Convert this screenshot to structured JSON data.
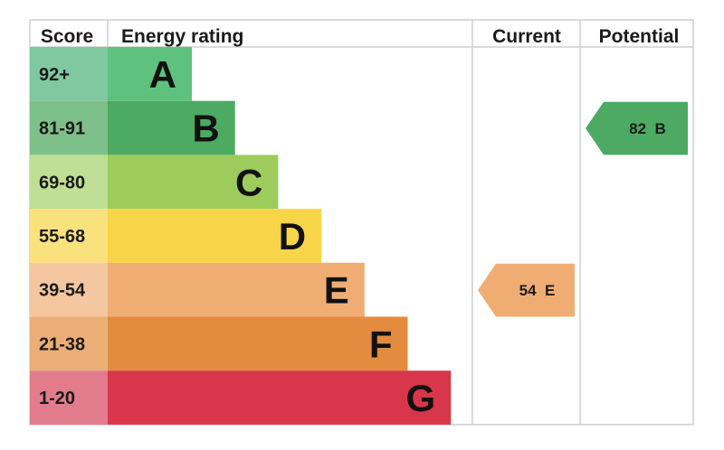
{
  "chart_data": {
    "type": "bar",
    "headers": {
      "score": "Score",
      "rating": "Energy rating",
      "current": "Current",
      "potential": "Potential"
    },
    "bands": [
      {
        "range": "92+",
        "letter": "A",
        "bar_color": "#5ec27e",
        "score_color": "#7fc8a0"
      },
      {
        "range": "81-91",
        "letter": "B",
        "bar_color": "#4caa63",
        "score_color": "#7ec08a"
      },
      {
        "range": "69-80",
        "letter": "C",
        "bar_color": "#9dcb5c",
        "score_color": "#bedf94"
      },
      {
        "range": "55-68",
        "letter": "D",
        "bar_color": "#f8d548",
        "score_color": "#f9e27d"
      },
      {
        "range": "39-54",
        "letter": "E",
        "bar_color": "#f0ad73",
        "score_color": "#f4c7a0"
      },
      {
        "range": "21-38",
        "letter": "F",
        "bar_color": "#e38b3e",
        "score_color": "#ecae77"
      },
      {
        "range": "1-20",
        "letter": "G",
        "bar_color": "#d8364a",
        "score_color": "#e27c8c"
      }
    ],
    "current": {
      "value": 54,
      "letter": "E",
      "label": "54 E",
      "color": "#f0ad73"
    },
    "potential": {
      "value": 82,
      "letter": "B",
      "label": "82 B",
      "color": "#4caa63"
    }
  }
}
